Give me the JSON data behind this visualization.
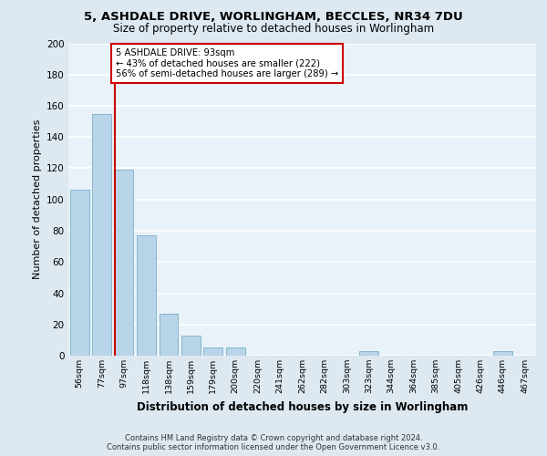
{
  "title_line1": "5, ASHDALE DRIVE, WORLINGHAM, BECCLES, NR34 7DU",
  "title_line2": "Size of property relative to detached houses in Worlingham",
  "xlabel": "Distribution of detached houses by size in Worlingham",
  "ylabel": "Number of detached properties",
  "categories": [
    "56sqm",
    "77sqm",
    "97sqm",
    "118sqm",
    "138sqm",
    "159sqm",
    "179sqm",
    "200sqm",
    "220sqm",
    "241sqm",
    "262sqm",
    "282sqm",
    "303sqm",
    "323sqm",
    "344sqm",
    "364sqm",
    "385sqm",
    "405sqm",
    "426sqm",
    "446sqm",
    "467sqm"
  ],
  "values": [
    106,
    155,
    119,
    77,
    27,
    13,
    5,
    5,
    0,
    0,
    0,
    0,
    0,
    3,
    0,
    0,
    0,
    0,
    0,
    3,
    0
  ],
  "bar_color": "#b8d4e8",
  "bar_edge_color": "#7aafc8",
  "annotation_text": "5 ASHDALE DRIVE: 93sqm\n← 43% of detached houses are smaller (222)\n56% of semi-detached houses are larger (289) →",
  "annotation_box_color": "#ffffff",
  "annotation_box_edge": "#cc0000",
  "vline_color": "#cc0000",
  "footer_line1": "Contains HM Land Registry data © Crown copyright and database right 2024.",
  "footer_line2": "Contains public sector information licensed under the Open Government Licence v3.0.",
  "bg_color": "#dde8f0",
  "plot_bg_color": "#e8f2f8",
  "grid_color": "#ffffff",
  "ylim": [
    0,
    200
  ],
  "yticks": [
    0,
    20,
    40,
    60,
    80,
    100,
    120,
    140,
    160,
    180,
    200
  ]
}
